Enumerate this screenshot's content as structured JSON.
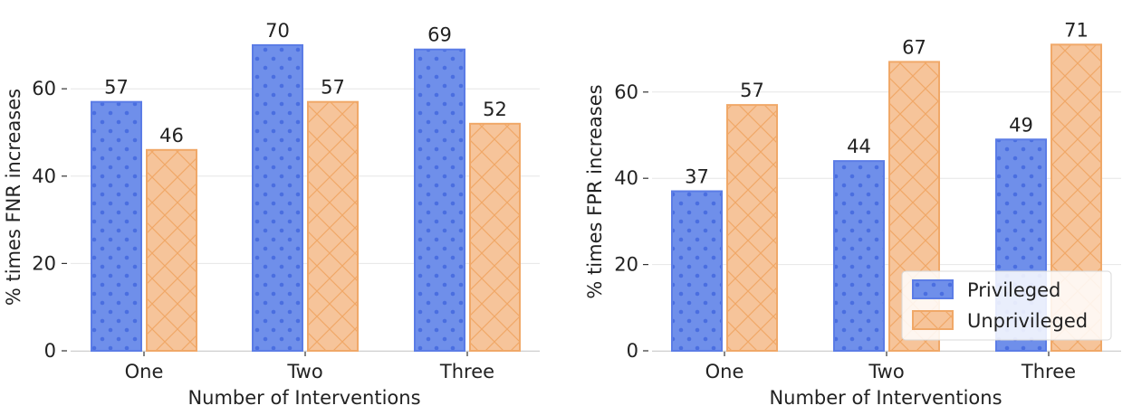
{
  "colors": {
    "privileged_fill": "#6f8fea",
    "privileged_edge": "#5b7ce6",
    "privileged_dot": "#4a6ee0",
    "unprivileged_fill": "#f6c49a",
    "unprivileged_edge": "#f0a868",
    "grid": "#e6e6e6",
    "axis": "#333333"
  },
  "legend": {
    "privileged": "Privileged",
    "unprivileged": "Unprivileged",
    "placement": "lower-right of right panel"
  },
  "chart_data": [
    {
      "type": "bar",
      "categories": [
        "One",
        "Two",
        "Three"
      ],
      "series": [
        {
          "name": "Privileged",
          "values": [
            57,
            70,
            69
          ],
          "hatch": "dots"
        },
        {
          "name": "Unprivileged",
          "values": [
            46,
            57,
            52
          ],
          "hatch": "crosshatch"
        }
      ],
      "xlabel": "Number of Interventions",
      "ylabel": "% times FNR increases",
      "yticks": [
        0,
        20,
        40,
        60
      ],
      "ylim": [
        0,
        74
      ],
      "grid": "horizontal",
      "legend": false
    },
    {
      "type": "bar",
      "categories": [
        "One",
        "Two",
        "Three"
      ],
      "series": [
        {
          "name": "Privileged",
          "values": [
            37,
            44,
            49
          ],
          "hatch": "dots"
        },
        {
          "name": "Unprivileged",
          "values": [
            57,
            67,
            71
          ],
          "hatch": "crosshatch"
        }
      ],
      "xlabel": "Number of Interventions",
      "ylabel": "% times FPR increases",
      "yticks": [
        0,
        20,
        40,
        60
      ],
      "ylim": [
        0,
        74
      ],
      "grid": "horizontal",
      "legend": true
    }
  ]
}
